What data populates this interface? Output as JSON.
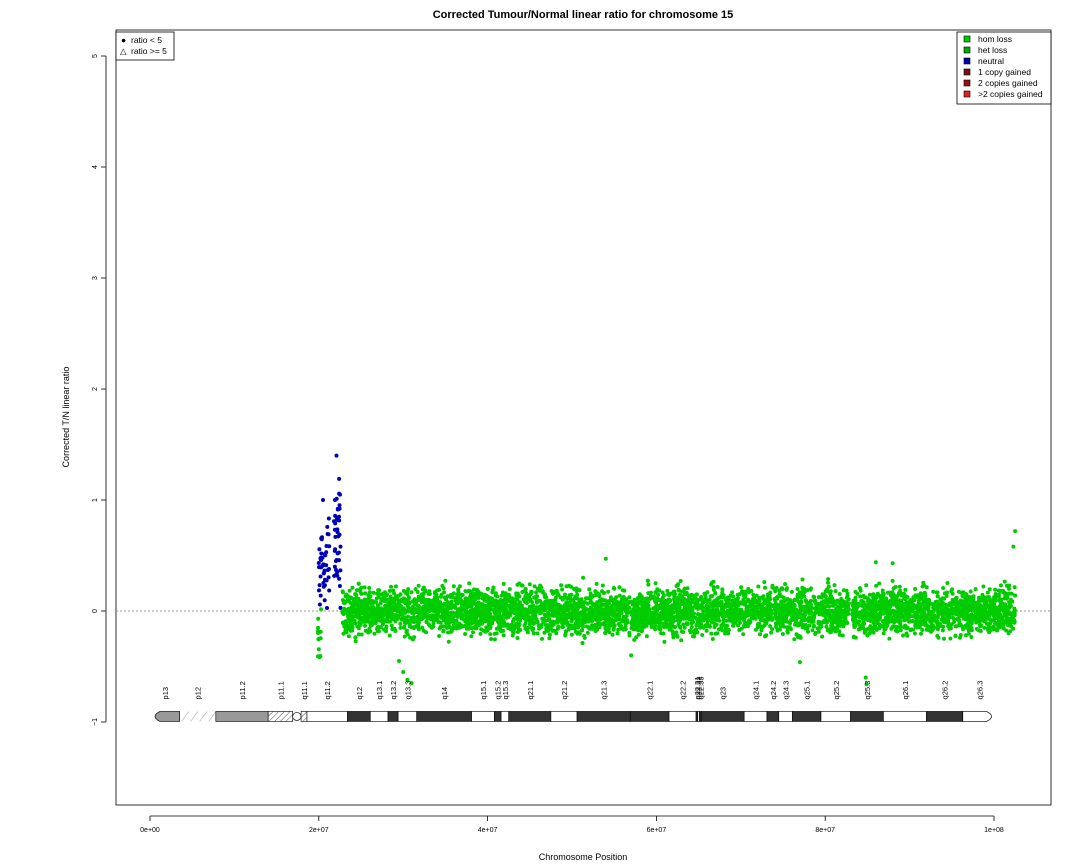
{
  "chart_data": {
    "type": "scatter",
    "title": "Corrected Tumour/Normal linear ratio for chromosome  15",
    "xlabel": "Chromosome Position",
    "ylabel": "Corrected T/N linear ratio",
    "xlim": [
      -4000000,
      107000000
    ],
    "ylim": [
      -1.75,
      5.25
    ],
    "x_ticks": [
      0,
      20000000,
      40000000,
      60000000,
      80000000,
      100000000
    ],
    "x_tick_labels": [
      "0e+00",
      "2e+07",
      "4e+07",
      "6e+07",
      "8e+07",
      "1e+08"
    ],
    "y_ticks": [
      -1,
      0,
      1,
      2,
      3,
      4,
      5
    ],
    "y_tick_labels": [
      "−1",
      "0",
      "1",
      "2",
      "3",
      "4",
      "5"
    ],
    "reference_line_y": 0,
    "shape_legend": {
      "placement": "top-left",
      "entries": [
        {
          "symbol": "●",
          "label": "ratio < 5"
        },
        {
          "symbol": "△",
          "label": "ratio >= 5"
        }
      ]
    },
    "legend": {
      "placement": "top-right",
      "entries": [
        {
          "label": "hom loss",
          "color": "#00cc00"
        },
        {
          "label": "het loss",
          "color": "#00aa00"
        },
        {
          "label": "neutral",
          "color": "#0000aa"
        },
        {
          "label": "1 copy gained",
          "color": "#771111"
        },
        {
          "label": "2 copies gained",
          "color": "#991111"
        },
        {
          "label": ">2 copies gained",
          "color": "#dd2222"
        }
      ]
    },
    "series": [
      {
        "status": "neutral",
        "color": "#0000bb",
        "segments": [
          {
            "x_start": 20000000,
            "x_end": 21300000,
            "mean": 0.45,
            "spread": 0.22,
            "n": 45
          },
          {
            "x_start": 21800000,
            "x_end": 22600000,
            "mean": 0.65,
            "spread": 0.25,
            "n": 40
          }
        ],
        "highlights": [
          {
            "x": 22100000,
            "y": 1.4
          },
          {
            "x": 20500000,
            "y": 1.0
          },
          {
            "x": 22400000,
            "y": 1.19
          }
        ]
      },
      {
        "status": "het loss",
        "color": "#00cc00",
        "segments": [
          {
            "x_start": 19900000,
            "x_end": 20300000,
            "mean": -0.2,
            "spread": 0.12,
            "n": 14
          },
          {
            "x_start": 22800000,
            "x_end": 102500000,
            "mean": 0.0,
            "spread": 0.1,
            "n": 5200
          }
        ],
        "gaps": [
          [
            82800000,
            83200000
          ]
        ],
        "highlights": [
          {
            "x": 30000000,
            "y": -0.55
          },
          {
            "x": 30500000,
            "y": -0.62
          },
          {
            "x": 31000000,
            "y": -0.65
          },
          {
            "x": 29500000,
            "y": -0.45
          },
          {
            "x": 84800000,
            "y": -0.6
          },
          {
            "x": 84900000,
            "y": -0.66
          },
          {
            "x": 77000000,
            "y": -0.46
          },
          {
            "x": 54000000,
            "y": 0.47
          },
          {
            "x": 102500000,
            "y": 0.72
          },
          {
            "x": 102300000,
            "y": 0.58
          },
          {
            "x": 86000000,
            "y": 0.44
          },
          {
            "x": 88000000,
            "y": 0.43
          },
          {
            "x": 57000000,
            "y": -0.4
          }
        ]
      }
    ],
    "ideogram": {
      "y": -0.95,
      "bands": [
        {
          "name": "p13",
          "start": 0,
          "end": 3500000,
          "type": "acen_p",
          "label": "p13"
        },
        {
          "name": "p12",
          "start": 3500000,
          "end": 7800000,
          "type": "stalk",
          "label": "p12"
        },
        {
          "name": "p11.2",
          "start": 7800000,
          "end": 14000000,
          "type": "gvar",
          "label": "p11.2"
        },
        {
          "name": "p11.1",
          "start": 14000000,
          "end": 16900000,
          "type": "hatched",
          "label": "p11.1"
        },
        {
          "name": "cen",
          "start": 16900000,
          "end": 17900000,
          "type": "cen",
          "label": ""
        },
        {
          "name": "q11.1",
          "start": 17900000,
          "end": 18600000,
          "type": "hatched",
          "label": "q11.1"
        },
        {
          "name": "q11.2",
          "start": 18600000,
          "end": 23400000,
          "type": "gneg",
          "label": "q11.2"
        },
        {
          "name": "q12",
          "start": 23400000,
          "end": 26100000,
          "type": "gpos",
          "label": "q12"
        },
        {
          "name": "q13.1",
          "start": 26100000,
          "end": 28200000,
          "type": "gneg",
          "label": "q13.1"
        },
        {
          "name": "q13.2",
          "start": 28200000,
          "end": 29400000,
          "type": "gpos",
          "label": "q13.2"
        },
        {
          "name": "q13.3",
          "start": 29400000,
          "end": 31600000,
          "type": "gneg",
          "label": "q13.3"
        },
        {
          "name": "q14",
          "start": 31600000,
          "end": 38100000,
          "type": "gpos",
          "label": "q14"
        },
        {
          "name": "q15.1",
          "start": 38100000,
          "end": 40800000,
          "type": "gneg",
          "label": "q15.1"
        },
        {
          "name": "q15.2",
          "start": 40800000,
          "end": 41600000,
          "type": "gpos",
          "label": "q15.2"
        },
        {
          "name": "q15.3",
          "start": 41600000,
          "end": 42500000,
          "type": "gneg",
          "label": "q15.3"
        },
        {
          "name": "q21.1",
          "start": 42500000,
          "end": 47500000,
          "type": "gpos",
          "label": "q21.1"
        },
        {
          "name": "q21.2",
          "start": 47500000,
          "end": 50600000,
          "type": "gneg",
          "label": "q21.2"
        },
        {
          "name": "q21.3",
          "start": 50600000,
          "end": 56900000,
          "type": "gpos",
          "label": "q21.3"
        },
        {
          "name": "q22.1",
          "start": 56900000,
          "end": 61500000,
          "type": "gpos",
          "label": "q22.1"
        },
        {
          "name": "q22.2",
          "start": 61500000,
          "end": 64700000,
          "type": "gneg",
          "label": "q22.2"
        },
        {
          "name": "q22.31",
          "start": 64700000,
          "end": 64900000,
          "type": "gpos",
          "label": "q22.31"
        },
        {
          "name": "q22.32",
          "start": 64900000,
          "end": 65100000,
          "type": "gneg",
          "label": "q22.32"
        },
        {
          "name": "q22.33",
          "start": 65100000,
          "end": 65300000,
          "type": "gpos",
          "label": "q22.33"
        },
        {
          "name": "q23",
          "start": 65300000,
          "end": 70400000,
          "type": "gpos",
          "label": "q23"
        },
        {
          "name": "q24.1",
          "start": 70400000,
          "end": 73100000,
          "type": "gneg",
          "label": "q24.1"
        },
        {
          "name": "q24.2",
          "start": 73100000,
          "end": 74500000,
          "type": "gpos",
          "label": "q24.2"
        },
        {
          "name": "q24.3",
          "start": 74500000,
          "end": 76100000,
          "type": "gneg",
          "label": "q24.3"
        },
        {
          "name": "q25.1",
          "start": 76100000,
          "end": 79500000,
          "type": "gpos",
          "label": "q25.1"
        },
        {
          "name": "q25.2",
          "start": 79500000,
          "end": 83000000,
          "type": "gneg",
          "label": "q25.2"
        },
        {
          "name": "q25.3",
          "start": 83000000,
          "end": 86900000,
          "type": "gpos",
          "label": "q25.3"
        },
        {
          "name": "q26.1",
          "start": 86900000,
          "end": 92000000,
          "type": "gneg",
          "label": "q26.1"
        },
        {
          "name": "q26.2",
          "start": 92000000,
          "end": 96300000,
          "type": "gpos",
          "label": "q26.2"
        },
        {
          "name": "q26.3",
          "start": 96300000,
          "end": 100300000,
          "type": "acen_q",
          "label": "q26.3"
        }
      ]
    }
  }
}
